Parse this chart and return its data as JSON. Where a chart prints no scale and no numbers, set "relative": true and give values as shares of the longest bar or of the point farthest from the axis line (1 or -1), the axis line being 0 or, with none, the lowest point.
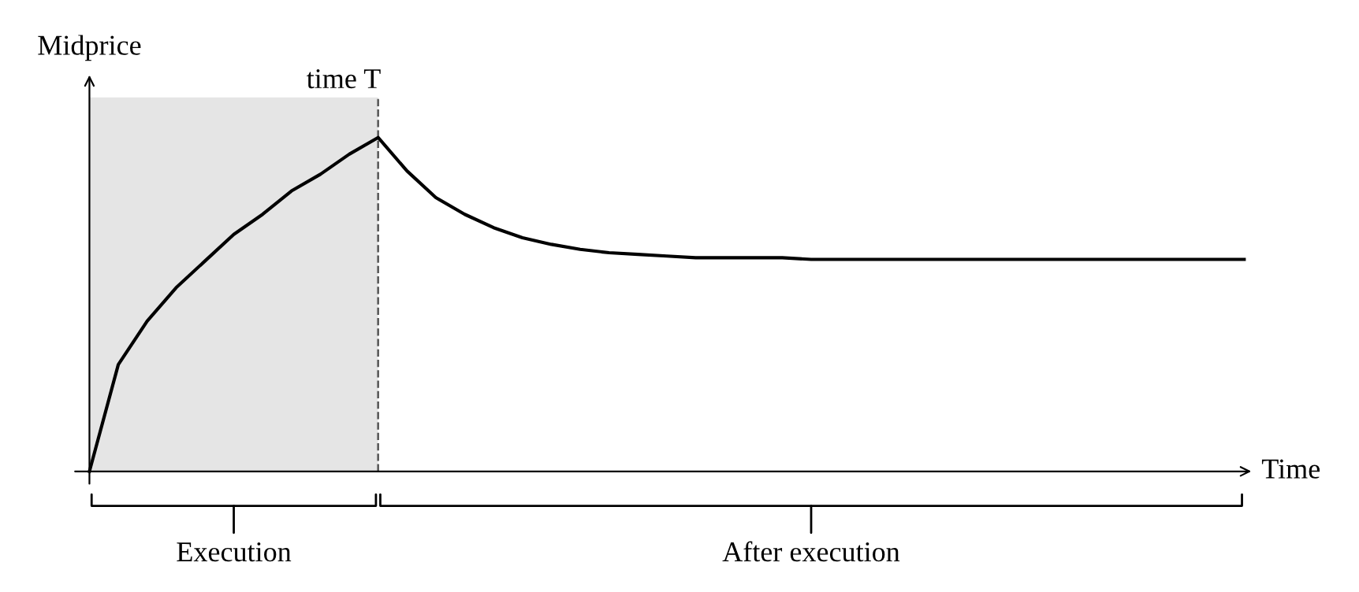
{
  "chart_data": {
    "type": "line",
    "xlabel": "Time",
    "ylabel": "Midprice",
    "relative": true,
    "categories": [
      null,
      null,
      null,
      null,
      null,
      null,
      null,
      null,
      null,
      null,
      null,
      null,
      null,
      null,
      null,
      null,
      null,
      null,
      null,
      null,
      null,
      null,
      null,
      null,
      null,
      null,
      null,
      null,
      null,
      null,
      null,
      null,
      null,
      null,
      null,
      null,
      null,
      null,
      null,
      null,
      null
    ],
    "series": [
      {
        "color": "#000000",
        "values": [
          0,
          0.32,
          0.45,
          0.55,
          0.63,
          0.71,
          0.77,
          0.84,
          0.89,
          0.95,
          1.0,
          0.9,
          0.82,
          0.77,
          0.73,
          0.7,
          0.68,
          0.665,
          0.655,
          0.65,
          0.645,
          0.64,
          0.64,
          0.64,
          0.64,
          0.635,
          0.635,
          0.635,
          0.635,
          0.635,
          0.635,
          0.635,
          0.635,
          0.635,
          0.635,
          0.635,
          0.635,
          0.635,
          0.635,
          0.635,
          0.635
        ]
      }
    ],
    "annotations": [
      "time T",
      "Execution",
      "After execution"
    ],
    "line_style": "solid",
    "legend": false
  }
}
